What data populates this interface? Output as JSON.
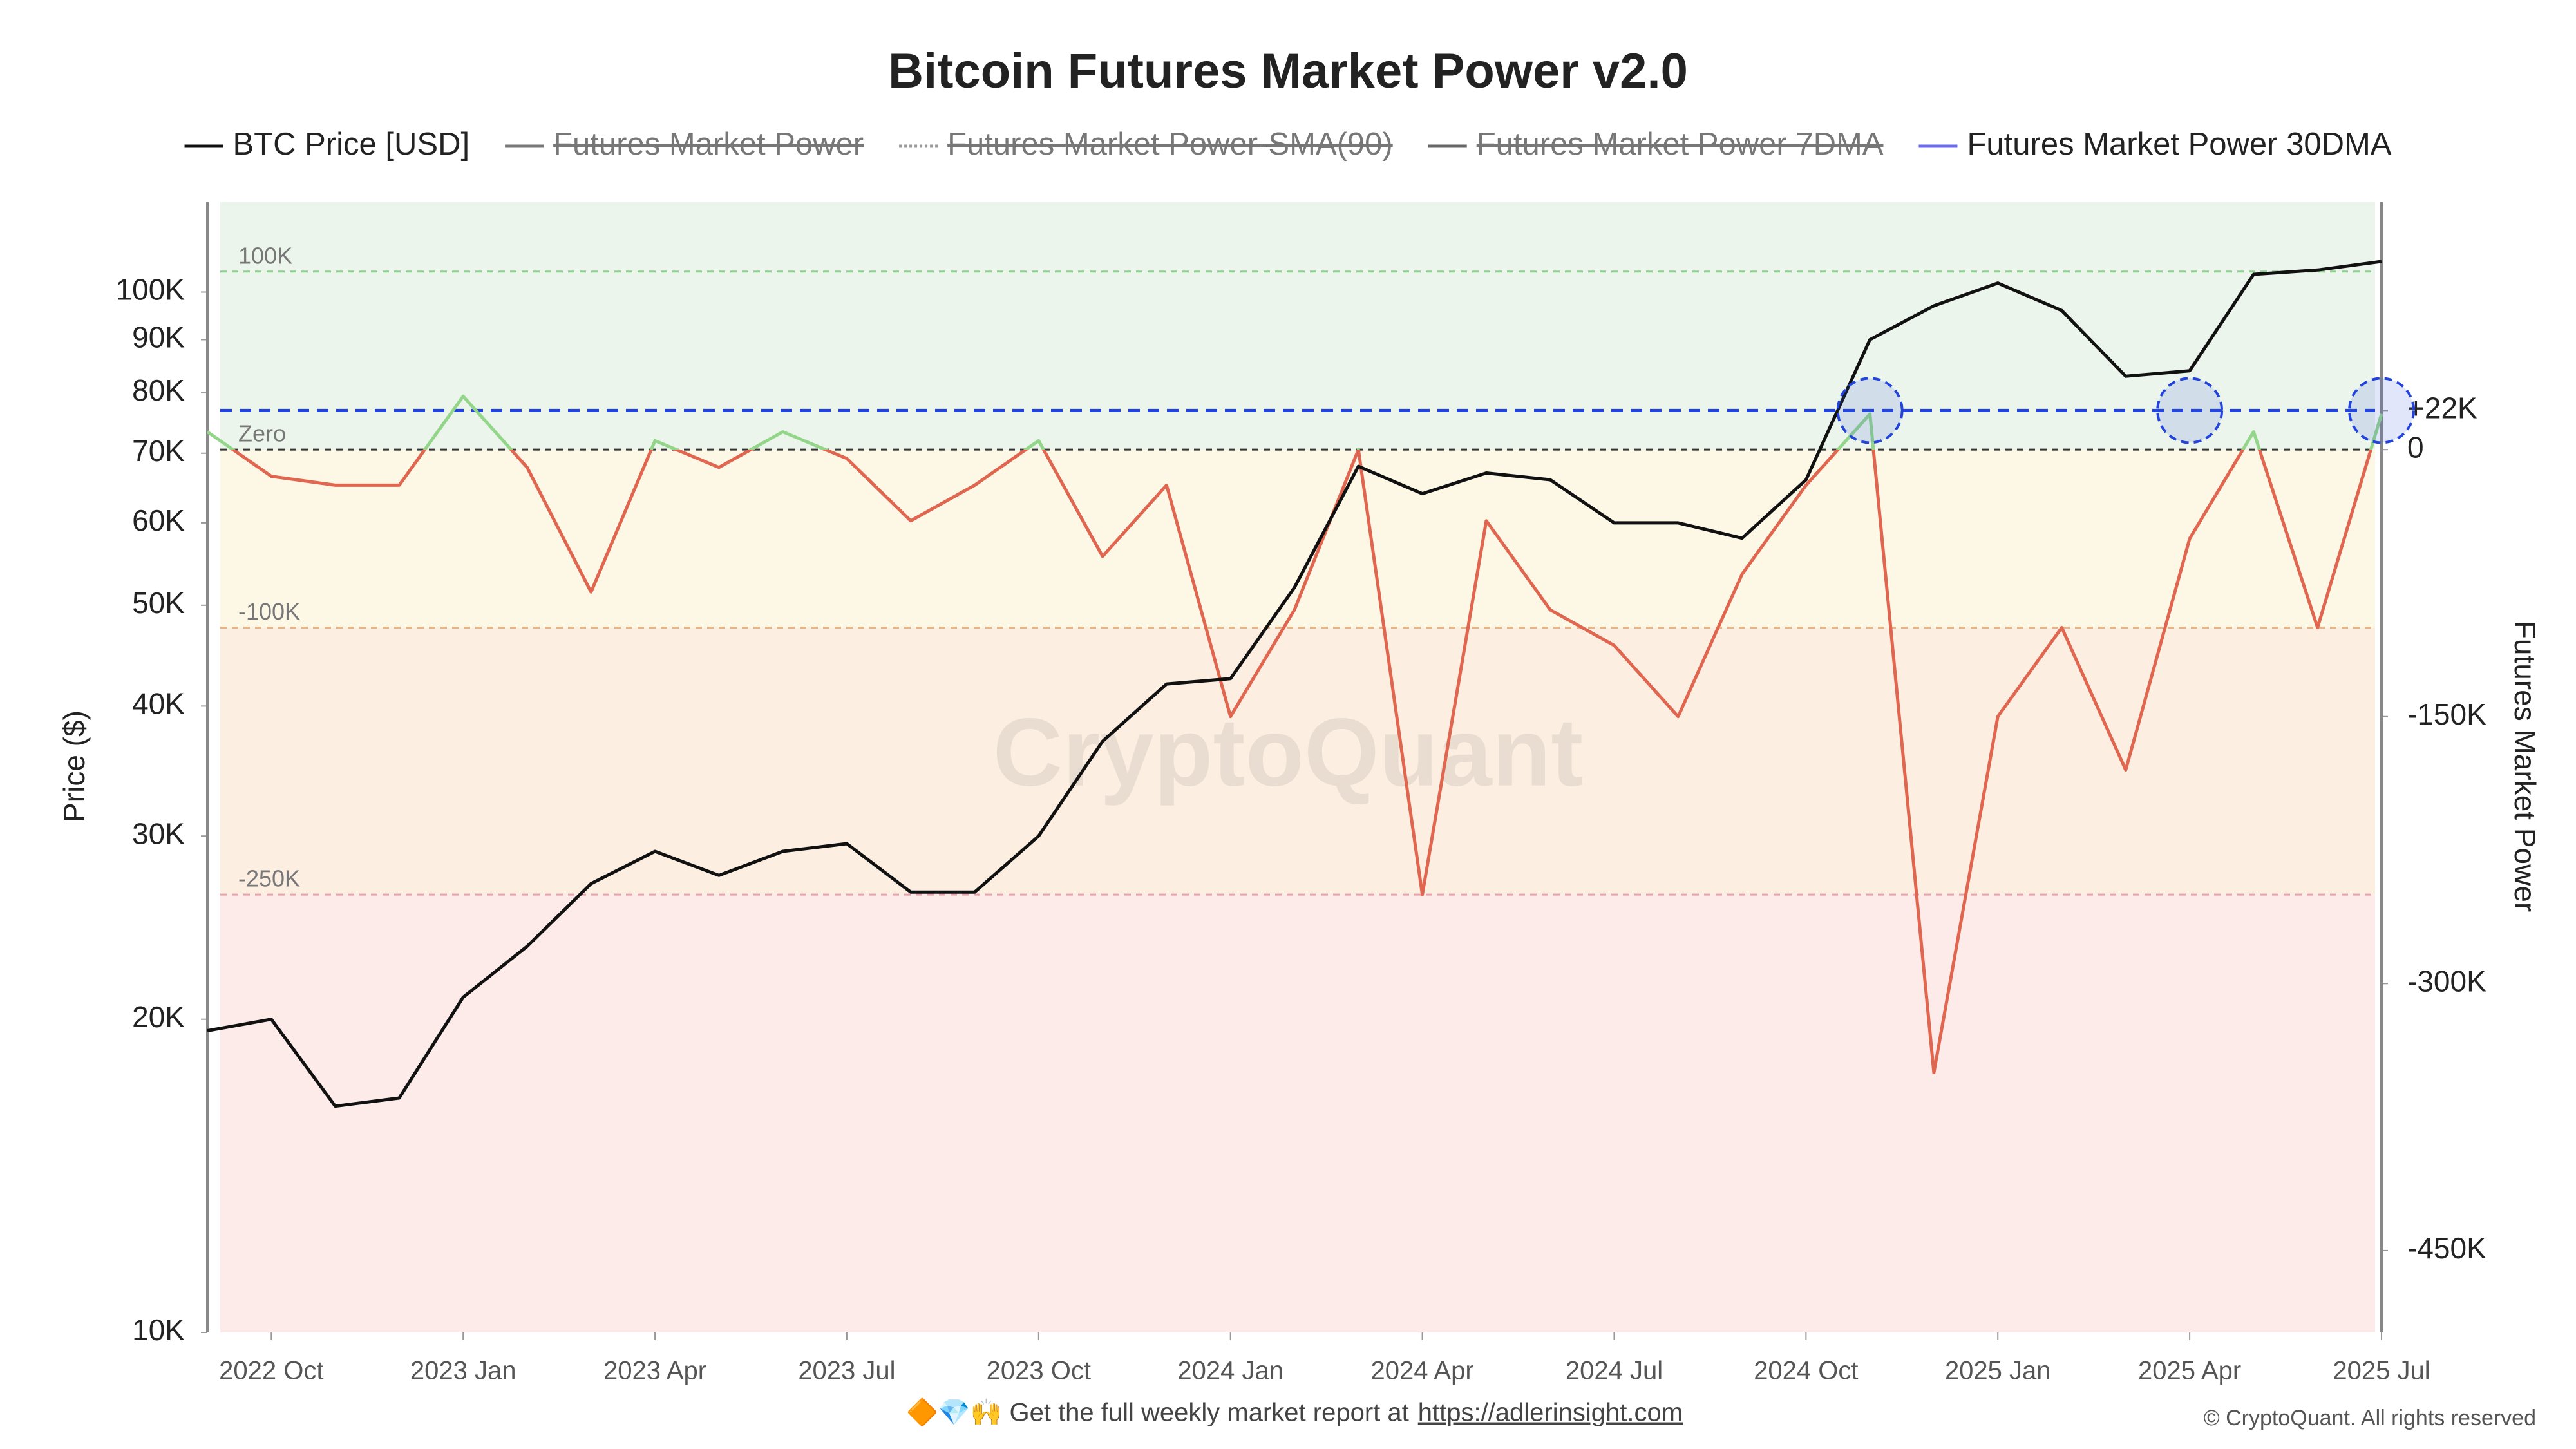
{
  "chart_data": {
    "type": "line",
    "title": "Bitcoin Futures Market Power v2.0",
    "y_label": "Price ($)",
    "y2_label": "Futures Market Power",
    "watermark": "CryptoQuant",
    "footer": "🔶💎🙌 Get the full weekly market report at",
    "footer_link": "https://adlerinsight.com",
    "copyright": "© CryptoQuant. All rights reserved",
    "x": [
      "2022-09",
      "2022-10",
      "2022-11",
      "2022-12",
      "2023-01",
      "2023-02",
      "2023-03",
      "2023-04",
      "2023-05",
      "2023-06",
      "2023-07",
      "2023-08",
      "2023-09",
      "2023-10",
      "2023-11",
      "2023-12",
      "2024-01",
      "2024-02",
      "2024-03",
      "2024-04",
      "2024-05",
      "2024-06",
      "2024-07",
      "2024-08",
      "2024-09",
      "2024-10",
      "2024-11",
      "2024-12",
      "2025-01",
      "2025-02",
      "2025-03",
      "2025-04",
      "2025-05",
      "2025-06",
      "2025-07"
    ],
    "xlim": [
      "2022-09",
      "2025-07"
    ],
    "xticks": [
      {
        "value": "2022-10",
        "label": "2022 Oct"
      },
      {
        "value": "2023-01",
        "label": "2023 Jan"
      },
      {
        "value": "2023-04",
        "label": "2023 Apr"
      },
      {
        "value": "2023-07",
        "label": "2023 Jul"
      },
      {
        "value": "2023-10",
        "label": "2023 Oct"
      },
      {
        "value": "2024-01",
        "label": "2024 Jan"
      },
      {
        "value": "2024-04",
        "label": "2024 Apr"
      },
      {
        "value": "2024-07",
        "label": "2024 Jul"
      },
      {
        "value": "2024-10",
        "label": "2024 Oct"
      },
      {
        "value": "2025-01",
        "label": "2025 Jan"
      },
      {
        "value": "2025-04",
        "label": "2025 Apr"
      },
      {
        "value": "2025-07",
        "label": "2025 Jul"
      }
    ],
    "log_scale_y": true,
    "ylim": [
      10000,
      122000
    ],
    "yticks": [
      {
        "value": 10000,
        "label": "10K"
      },
      {
        "value": 20000,
        "label": "20K"
      },
      {
        "value": 30000,
        "label": "30K"
      },
      {
        "value": 40000,
        "label": "40K"
      },
      {
        "value": 50000,
        "label": "50K"
      },
      {
        "value": 60000,
        "label": "60K"
      },
      {
        "value": 70000,
        "label": "70K"
      },
      {
        "value": 80000,
        "label": "80K"
      },
      {
        "value": 90000,
        "label": "90K"
      },
      {
        "value": 100000,
        "label": "100K"
      }
    ],
    "y2lim": [
      -496000,
      139000
    ],
    "y2ticks": [
      {
        "value": 22000,
        "label": "+22K"
      },
      0,
      {
        "value": -150000,
        "label": "-150K"
      },
      {
        "value": -300000,
        "label": "-300K"
      },
      {
        "value": -450000,
        "label": "-450K"
      }
    ],
    "series": [
      {
        "name": "BTC Price [USD]",
        "color": "#111111",
        "axis": "y",
        "values": [
          19500,
          20000,
          16500,
          16800,
          21000,
          23500,
          27000,
          29000,
          27500,
          29000,
          29500,
          26500,
          26500,
          30000,
          37000,
          42000,
          42500,
          52000,
          68000,
          64000,
          67000,
          66000,
          60000,
          60000,
          58000,
          66000,
          90000,
          97000,
          102000,
          96000,
          83000,
          84000,
          104000,
          105000,
          107000
        ]
      },
      {
        "name": "Futures Market Power 30DMA",
        "color": "#6b6bea",
        "axis": "y2",
        "positive_color": "#93d68a",
        "negative_color": "#e06650",
        "values": [
          10000,
          -15000,
          -20000,
          -20000,
          30000,
          -10000,
          -80000,
          5000,
          -10000,
          10000,
          -5000,
          -40000,
          -20000,
          5000,
          -60000,
          -20000,
          -150000,
          -90000,
          0,
          -250000,
          -40000,
          -90000,
          -110000,
          -150000,
          -70000,
          -20000,
          20000,
          -350000,
          -150000,
          -100000,
          -180000,
          -50000,
          10000,
          -100000,
          20000
        ]
      }
    ],
    "hidden_series": [
      {
        "name": "Futures Market Power",
        "color": "#777777"
      },
      {
        "name": "Futures Market Power-SMA(90)",
        "color": "#999999"
      },
      {
        "name": "Futures Market Power 7DMA",
        "color": "#666666"
      }
    ],
    "thresholds": [
      {
        "value": 100000,
        "label": "100K",
        "color": "#8fcf8f"
      },
      {
        "value": 0,
        "label": "Zero",
        "color": "#333333"
      },
      {
        "value": -100000,
        "label": "-100K",
        "color": "#e7b48a"
      },
      {
        "value": -250000,
        "label": "-250K",
        "color": "#e8a0a8"
      }
    ],
    "bands": [
      {
        "from": 139000,
        "to": 0,
        "color": "#ebf5eb"
      },
      {
        "from": 0,
        "to": -100000,
        "color": "#fdf7e6"
      },
      {
        "from": -100000,
        "to": -250000,
        "color": "#fcefe2"
      },
      {
        "from": -250000,
        "to": -496000,
        "color": "#fcebe8"
      }
    ],
    "signal_line": {
      "value": 22000,
      "color": "#2244dd"
    },
    "highlight_x": [
      "2024-11",
      "2025-04",
      "2025-07"
    ]
  }
}
